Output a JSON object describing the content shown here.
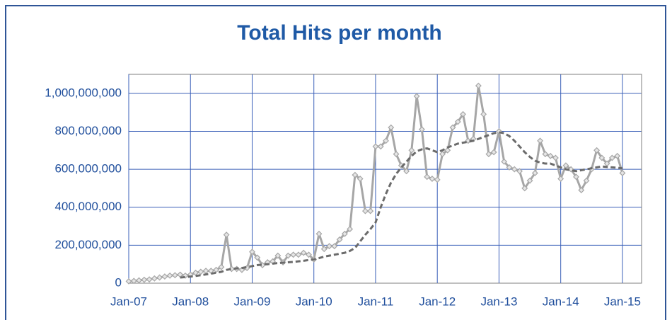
{
  "chart_data": {
    "type": "line",
    "title": "Total Hits per month",
    "categories": [
      "Jan-07",
      null,
      null,
      null,
      null,
      null,
      null,
      null,
      null,
      null,
      null,
      null,
      "Jan-08",
      null,
      null,
      null,
      null,
      null,
      null,
      null,
      null,
      null,
      null,
      null,
      "Jan-09",
      null,
      null,
      null,
      null,
      null,
      null,
      null,
      null,
      null,
      null,
      null,
      "Jan-10",
      null,
      null,
      null,
      null,
      null,
      null,
      null,
      null,
      null,
      null,
      null,
      "Jan-11",
      null,
      null,
      null,
      null,
      null,
      null,
      null,
      null,
      null,
      null,
      null,
      "Jan-12",
      null,
      null,
      null,
      null,
      null,
      null,
      null,
      null,
      null,
      null,
      null,
      "Jan-13",
      null,
      null,
      null,
      null,
      null,
      null,
      null,
      null,
      null,
      null,
      null,
      "Jan-14",
      null,
      null,
      null,
      null,
      null,
      null,
      null,
      null,
      null,
      null,
      null,
      "Jan-15"
    ],
    "series": [
      {
        "color": "#a6a6a6",
        "style": "solid",
        "markers": true,
        "values": [
          10000000,
          12000000,
          15000000,
          18000000,
          20000000,
          25000000,
          30000000,
          35000000,
          40000000,
          42000000,
          45000000,
          40000000,
          45000000,
          55000000,
          60000000,
          65000000,
          65000000,
          70000000,
          85000000,
          255000000,
          75000000,
          75000000,
          70000000,
          80000000,
          165000000,
          135000000,
          95000000,
          110000000,
          115000000,
          145000000,
          110000000,
          145000000,
          150000000,
          150000000,
          160000000,
          150000000,
          125000000,
          260000000,
          180000000,
          195000000,
          195000000,
          230000000,
          260000000,
          285000000,
          570000000,
          550000000,
          380000000,
          380000000,
          720000000,
          720000000,
          750000000,
          820000000,
          680000000,
          620000000,
          590000000,
          700000000,
          985000000,
          810000000,
          560000000,
          550000000,
          545000000,
          680000000,
          700000000,
          820000000,
          850000000,
          890000000,
          750000000,
          760000000,
          1040000000,
          890000000,
          680000000,
          690000000,
          800000000,
          640000000,
          610000000,
          600000000,
          590000000,
          500000000,
          540000000,
          580000000,
          750000000,
          680000000,
          670000000,
          660000000,
          550000000,
          620000000,
          600000000,
          560000000,
          490000000,
          540000000,
          600000000,
          700000000,
          660000000,
          630000000,
          660000000,
          670000000,
          580000000
        ]
      },
      {
        "color": "#6b6b6b",
        "style": "dashed",
        "markers": false,
        "values": [
          null,
          null,
          null,
          null,
          null,
          null,
          null,
          null,
          null,
          null,
          30000000,
          32000000,
          35000000,
          38000000,
          42000000,
          46000000,
          50000000,
          55000000,
          60000000,
          70000000,
          75000000,
          78000000,
          80000000,
          85000000,
          90000000,
          95000000,
          98000000,
          100000000,
          103000000,
          106000000,
          108000000,
          110000000,
          112000000,
          115000000,
          118000000,
          122000000,
          125000000,
          132000000,
          140000000,
          145000000,
          150000000,
          155000000,
          160000000,
          170000000,
          185000000,
          220000000,
          255000000,
          285000000,
          320000000,
          400000000,
          470000000,
          530000000,
          575000000,
          610000000,
          640000000,
          670000000,
          695000000,
          705000000,
          710000000,
          700000000,
          690000000,
          700000000,
          715000000,
          725000000,
          735000000,
          740000000,
          745000000,
          750000000,
          760000000,
          770000000,
          780000000,
          790000000,
          795000000,
          790000000,
          775000000,
          750000000,
          720000000,
          690000000,
          665000000,
          645000000,
          635000000,
          630000000,
          630000000,
          620000000,
          610000000,
          600000000,
          595000000,
          590000000,
          595000000,
          600000000,
          605000000,
          610000000,
          615000000,
          612000000,
          610000000,
          608000000,
          605000000
        ]
      }
    ],
    "ylim": [
      0,
      1100000000
    ],
    "yticks": [
      0,
      {
        "value": 200000000,
        "label": "200,000,000"
      },
      {
        "value": 400000000,
        "label": "400,000,000"
      },
      {
        "value": 600000000,
        "label": "600,000,000"
      },
      {
        "value": 800000000,
        "label": "800,000,000"
      },
      {
        "value": 1000000000,
        "label": "1,000,000,000"
      }
    ],
    "grid": true,
    "grid_color": "#3a5fb8"
  }
}
